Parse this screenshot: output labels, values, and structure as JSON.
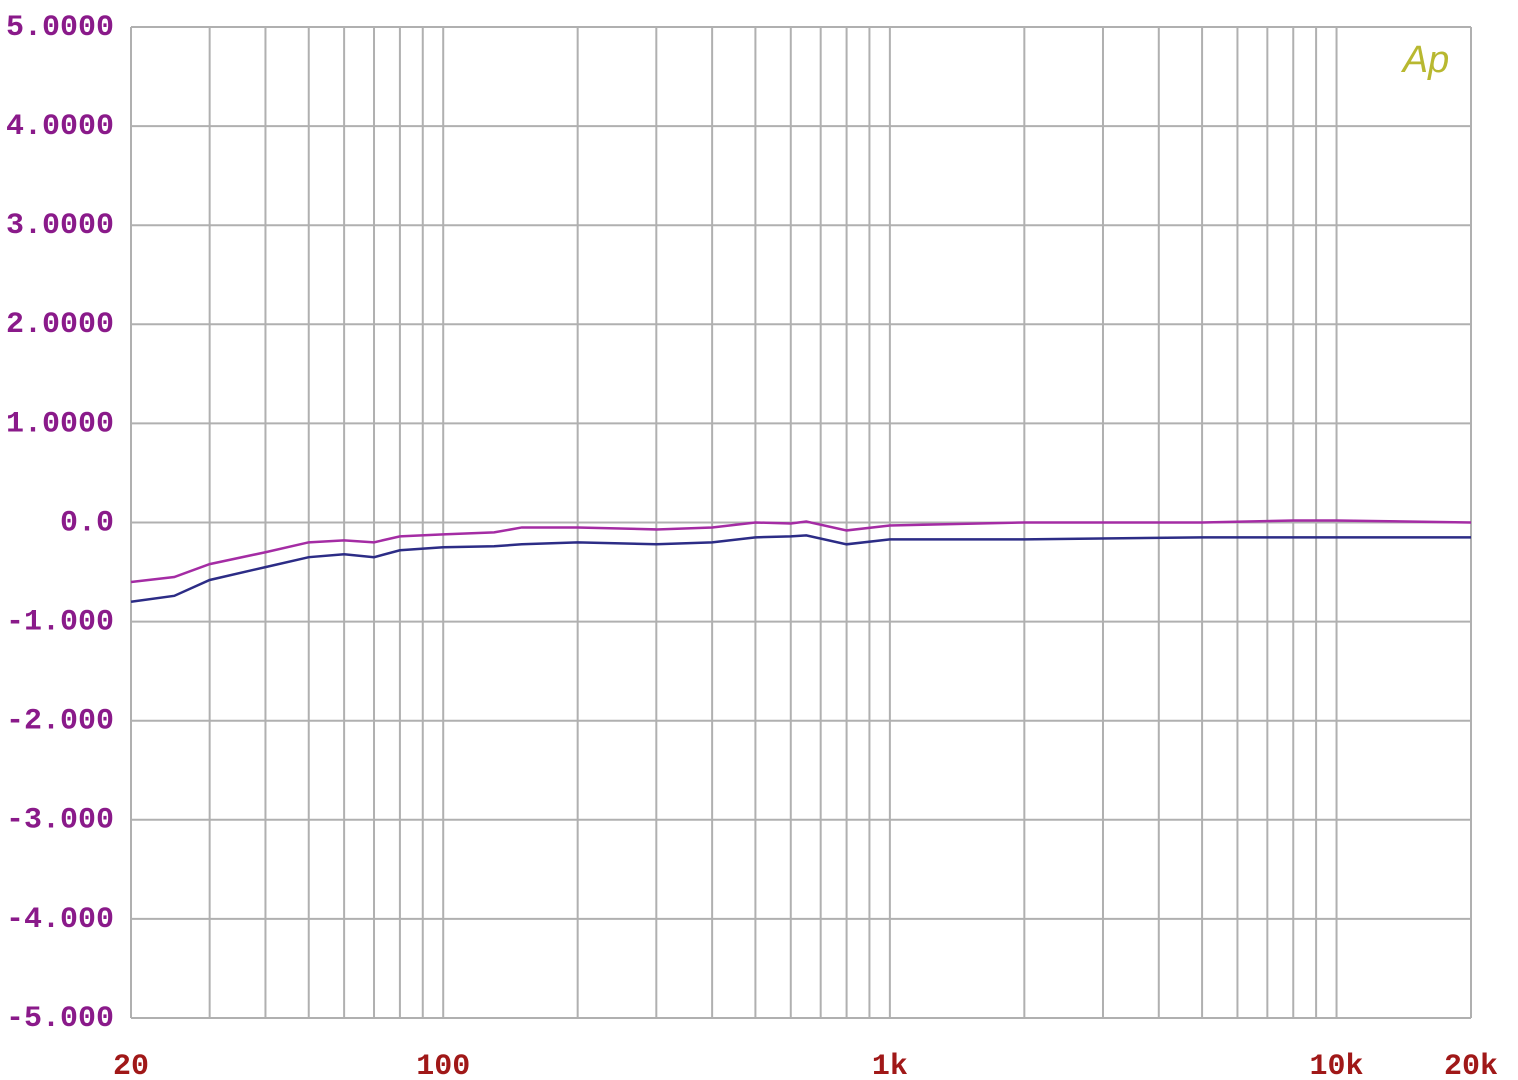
{
  "chart_data": {
    "type": "line",
    "annotation": "Ap",
    "x": [
      20,
      25,
      30,
      40,
      50,
      60,
      70,
      80,
      100,
      130,
      150,
      200,
      300,
      400,
      500,
      600,
      650,
      800,
      1000,
      2000,
      5000,
      8000,
      10000,
      20000
    ],
    "series": [
      {
        "color": "#a42ca4",
        "values": [
          -0.6,
          -0.55,
          -0.42,
          -0.3,
          -0.2,
          -0.18,
          -0.2,
          -0.14,
          -0.12,
          -0.1,
          -0.05,
          -0.05,
          -0.07,
          -0.05,
          0,
          -0.01,
          0.01,
          -0.08,
          -0.03,
          0,
          0,
          0.02,
          0.02,
          0
        ]
      },
      {
        "color": "#2c2c86",
        "values": [
          -0.8,
          -0.74,
          -0.58,
          -0.45,
          -0.35,
          -0.32,
          -0.35,
          -0.28,
          -0.25,
          -0.24,
          -0.22,
          -0.2,
          -0.22,
          -0.2,
          -0.15,
          -0.14,
          -0.13,
          -0.22,
          -0.17,
          -0.17,
          -0.15,
          -0.15,
          -0.15,
          -0.15
        ]
      }
    ],
    "xscale": "log",
    "xlim": [
      20,
      20000
    ],
    "xticks": [
      20,
      100,
      {
        "value": 1000,
        "label": "1k"
      },
      {
        "value": 10000,
        "label": "10k"
      },
      {
        "value": 20000,
        "label": "20k"
      }
    ],
    "xgrid": [
      20,
      30,
      40,
      50,
      60,
      70,
      80,
      90,
      100,
      200,
      300,
      400,
      500,
      600,
      700,
      800,
      900,
      1000,
      2000,
      3000,
      4000,
      5000,
      6000,
      7000,
      8000,
      9000,
      10000,
      20000
    ],
    "ylim": [
      -5,
      5
    ],
    "yticks": [
      {
        "value": 5,
        "label": "5.0000"
      },
      {
        "value": 4,
        "label": "4.0000"
      },
      {
        "value": 3,
        "label": "3.0000"
      },
      {
        "value": 2,
        "label": "2.0000"
      },
      {
        "value": 1,
        "label": "1.0000"
      },
      {
        "value": 0,
        "label": "0.0"
      },
      {
        "value": -1,
        "label": "-1.000"
      },
      {
        "value": -2,
        "label": "-2.000"
      },
      {
        "value": -3,
        "label": "-3.000"
      },
      {
        "value": -4,
        "label": "-4.000"
      },
      {
        "value": -5,
        "label": "-5.000"
      }
    ],
    "grid": true
  }
}
